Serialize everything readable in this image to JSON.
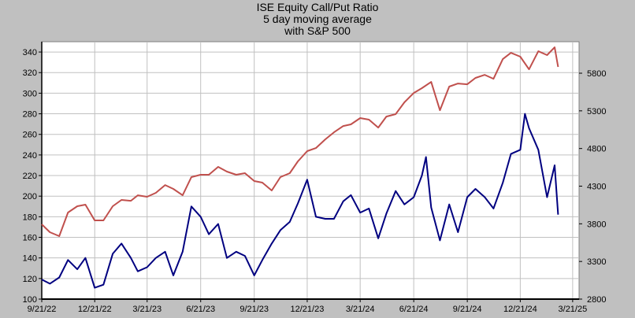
{
  "chart_data": {
    "type": "line",
    "title_lines": [
      "ISE  Equity Call/Put Ratio",
      "5 day moving average",
      "with S&P 500"
    ],
    "x_ticks": [
      "9/21/22",
      "12/21/22",
      "3/21/23",
      "6/21/23",
      "9/21/23",
      "12/21/23",
      "3/21/24",
      "6/21/24",
      "9/21/24",
      "12/21/24",
      "3/21/25"
    ],
    "x_tick_dates": [
      "2022-09-21",
      "2022-12-21",
      "2023-03-21",
      "2023-06-21",
      "2023-09-21",
      "2023-12-21",
      "2024-03-21",
      "2024-06-21",
      "2024-09-21",
      "2024-12-21",
      "2025-03-21"
    ],
    "xlim": [
      "2022-09-21",
      "2025-04-01"
    ],
    "y_left": {
      "ticks": [
        100,
        120,
        140,
        160,
        180,
        200,
        220,
        240,
        260,
        280,
        300,
        320,
        340
      ],
      "lim": [
        100,
        350
      ]
    },
    "y_right": {
      "ticks": [
        2800,
        3300,
        3800,
        4300,
        4800,
        5300,
        5800
      ],
      "lim": [
        2800,
        6218
      ]
    },
    "grid": true,
    "series": [
      {
        "axis": "left",
        "color": "#000080",
        "points": [
          [
            "2022-09-21",
            119
          ],
          [
            "2022-10-05",
            115
          ],
          [
            "2022-10-21",
            121
          ],
          [
            "2022-11-05",
            138
          ],
          [
            "2022-11-21",
            129
          ],
          [
            "2022-12-05",
            140
          ],
          [
            "2022-12-21",
            111
          ],
          [
            "2023-01-05",
            114
          ],
          [
            "2023-01-21",
            144
          ],
          [
            "2023-02-05",
            154
          ],
          [
            "2023-02-21",
            140
          ],
          [
            "2023-03-05",
            127
          ],
          [
            "2023-03-21",
            131
          ],
          [
            "2023-04-05",
            140
          ],
          [
            "2023-04-21",
            146
          ],
          [
            "2023-05-05",
            123
          ],
          [
            "2023-05-21",
            146
          ],
          [
            "2023-06-05",
            190
          ],
          [
            "2023-06-21",
            180
          ],
          [
            "2023-07-05",
            163
          ],
          [
            "2023-07-21",
            173
          ],
          [
            "2023-08-05",
            140
          ],
          [
            "2023-08-21",
            146
          ],
          [
            "2023-09-05",
            142
          ],
          [
            "2023-09-21",
            123
          ],
          [
            "2023-10-05",
            138
          ],
          [
            "2023-10-21",
            154
          ],
          [
            "2023-11-05",
            167
          ],
          [
            "2023-11-21",
            175
          ],
          [
            "2023-12-05",
            193
          ],
          [
            "2023-12-21",
            216
          ],
          [
            "2024-01-05",
            180
          ],
          [
            "2024-01-21",
            178
          ],
          [
            "2024-02-05",
            178
          ],
          [
            "2024-02-21",
            195
          ],
          [
            "2024-03-05",
            201
          ],
          [
            "2024-03-21",
            184
          ],
          [
            "2024-04-05",
            188
          ],
          [
            "2024-04-21",
            159
          ],
          [
            "2024-05-05",
            183
          ],
          [
            "2024-05-21",
            205
          ],
          [
            "2024-06-05",
            192
          ],
          [
            "2024-06-21",
            199
          ],
          [
            "2024-07-05",
            220
          ],
          [
            "2024-07-12",
            238
          ],
          [
            "2024-07-21",
            189
          ],
          [
            "2024-08-05",
            157
          ],
          [
            "2024-08-21",
            192
          ],
          [
            "2024-09-05",
            165
          ],
          [
            "2024-09-21",
            199
          ],
          [
            "2024-10-05",
            207
          ],
          [
            "2024-10-21",
            199
          ],
          [
            "2024-11-05",
            188
          ],
          [
            "2024-11-21",
            213
          ],
          [
            "2024-12-05",
            241
          ],
          [
            "2024-12-21",
            245
          ],
          [
            "2024-12-29",
            280
          ],
          [
            "2025-01-05",
            266
          ],
          [
            "2025-01-21",
            245
          ],
          [
            "2025-02-05",
            199
          ],
          [
            "2025-02-18",
            230
          ],
          [
            "2025-02-24",
            182
          ]
        ]
      },
      {
        "axis": "right",
        "color": "#c0504d",
        "points": [
          [
            "2022-09-21",
            3793
          ],
          [
            "2022-10-05",
            3688
          ],
          [
            "2022-10-21",
            3636
          ],
          [
            "2022-11-05",
            3950
          ],
          [
            "2022-11-21",
            4033
          ],
          [
            "2022-12-05",
            4054
          ],
          [
            "2022-12-21",
            3845
          ],
          [
            "2023-01-05",
            3845
          ],
          [
            "2023-01-21",
            4033
          ],
          [
            "2023-02-05",
            4117
          ],
          [
            "2023-02-21",
            4106
          ],
          [
            "2023-03-05",
            4179
          ],
          [
            "2023-03-21",
            4159
          ],
          [
            "2023-04-05",
            4211
          ],
          [
            "2023-04-21",
            4315
          ],
          [
            "2023-05-05",
            4263
          ],
          [
            "2023-05-21",
            4179
          ],
          [
            "2023-06-05",
            4420
          ],
          [
            "2023-06-21",
            4451
          ],
          [
            "2023-07-05",
            4451
          ],
          [
            "2023-07-21",
            4556
          ],
          [
            "2023-08-05",
            4493
          ],
          [
            "2023-08-21",
            4451
          ],
          [
            "2023-09-05",
            4472
          ],
          [
            "2023-09-21",
            4368
          ],
          [
            "2023-10-05",
            4347
          ],
          [
            "2023-10-21",
            4242
          ],
          [
            "2023-11-05",
            4420
          ],
          [
            "2023-11-21",
            4472
          ],
          [
            "2023-12-05",
            4629
          ],
          [
            "2023-12-21",
            4765
          ],
          [
            "2024-01-05",
            4806
          ],
          [
            "2024-01-21",
            4921
          ],
          [
            "2024-02-05",
            5015
          ],
          [
            "2024-02-21",
            5099
          ],
          [
            "2024-03-05",
            5120
          ],
          [
            "2024-03-21",
            5204
          ],
          [
            "2024-04-05",
            5183
          ],
          [
            "2024-04-21",
            5078
          ],
          [
            "2024-05-05",
            5224
          ],
          [
            "2024-05-21",
            5256
          ],
          [
            "2024-06-05",
            5413
          ],
          [
            "2024-06-21",
            5538
          ],
          [
            "2024-07-05",
            5601
          ],
          [
            "2024-07-21",
            5684
          ],
          [
            "2024-08-05",
            5308
          ],
          [
            "2024-08-21",
            5622
          ],
          [
            "2024-09-05",
            5663
          ],
          [
            "2024-09-21",
            5653
          ],
          [
            "2024-10-05",
            5737
          ],
          [
            "2024-10-21",
            5778
          ],
          [
            "2024-11-05",
            5726
          ],
          [
            "2024-11-21",
            5987
          ],
          [
            "2024-12-05",
            6071
          ],
          [
            "2024-12-21",
            6019
          ],
          [
            "2025-01-05",
            5851
          ],
          [
            "2025-01-21",
            6092
          ],
          [
            "2025-02-05",
            6040
          ],
          [
            "2025-02-18",
            6144
          ],
          [
            "2025-02-24",
            5883
          ]
        ]
      }
    ]
  }
}
